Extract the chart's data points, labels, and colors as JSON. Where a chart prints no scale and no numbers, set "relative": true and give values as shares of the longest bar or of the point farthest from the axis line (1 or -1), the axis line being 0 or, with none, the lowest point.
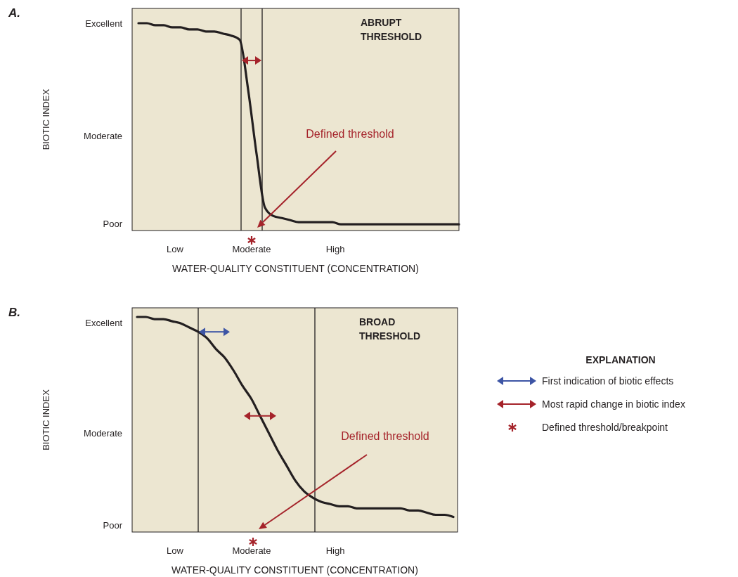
{
  "chart_data": [
    {
      "type": "line",
      "subtitle": "ABRUPT THRESHOLD",
      "xlabel": "WATER-QUALITY CONSTITUENT (CONCENTRATION)",
      "ylabel": "BIOTIC INDEX",
      "relative": true,
      "categories": [
        null,
        null,
        null,
        null,
        null,
        null,
        null,
        null,
        null,
        null,
        null,
        null,
        null,
        null,
        null,
        null,
        null,
        null,
        null,
        null,
        null,
        null,
        null,
        null,
        null,
        null,
        null,
        null,
        null,
        null,
        null,
        null,
        null,
        null,
        null,
        null,
        null,
        null,
        null
      ],
      "series": [
        {
          "color": "#231f20",
          "values": [
            1.0,
            1.0,
            0.99,
            0.99,
            0.98,
            0.98,
            0.97,
            0.97,
            0.96,
            0.96,
            0.95,
            0.94,
            0.92,
            0.68,
            0.37,
            0.11,
            0.07,
            0.06,
            0.05,
            0.04,
            0.04,
            0.04,
            0.04,
            0.04,
            0.03,
            0.03,
            0.03,
            0.03,
            0.03,
            0.03,
            0.03,
            0.03,
            0.03,
            0.03,
            0.03,
            0.03,
            0.03,
            0.03,
            0.03
          ]
        }
      ],
      "annotations": [
        "A.",
        "Low",
        "Moderate",
        "High",
        "Poor",
        "Moderate",
        "Excellent",
        "Defined threshold"
      ]
    },
    {
      "type": "line",
      "subtitle": "BROAD THRESHOLD",
      "xlabel": "WATER-QUALITY CONSTITUENT (CONCENTRATION)",
      "ylabel": "BIOTIC INDEX",
      "legend_title": "EXPLANATION",
      "relative": true,
      "categories": [
        null,
        null,
        null,
        null,
        null,
        null,
        null,
        null,
        null,
        null,
        null,
        null,
        null,
        null,
        null,
        null,
        null,
        null,
        null,
        null,
        null,
        null,
        null,
        null,
        null,
        null,
        null,
        null,
        null,
        null,
        null,
        null,
        null,
        null,
        null,
        null,
        null
      ],
      "series": [
        {
          "color": "#231f20",
          "values": [
            1.0,
            1.0,
            0.99,
            0.99,
            0.98,
            0.97,
            0.95,
            0.93,
            0.9,
            0.85,
            0.81,
            0.75,
            0.68,
            0.62,
            0.54,
            0.46,
            0.38,
            0.31,
            0.24,
            0.19,
            0.16,
            0.14,
            0.13,
            0.12,
            0.12,
            0.11,
            0.11,
            0.11,
            0.11,
            0.11,
            0.11,
            0.1,
            0.1,
            0.09,
            0.08,
            0.08,
            0.07
          ]
        }
      ],
      "annotations": [
        "B.",
        "Low",
        "Moderate",
        "High",
        "Poor",
        "Moderate",
        "Excellent",
        "Defined threshold",
        "First indication of biotic effects",
        "Most rapid change in biotic index",
        "Defined threshold/breakpoint"
      ]
    }
  ]
}
